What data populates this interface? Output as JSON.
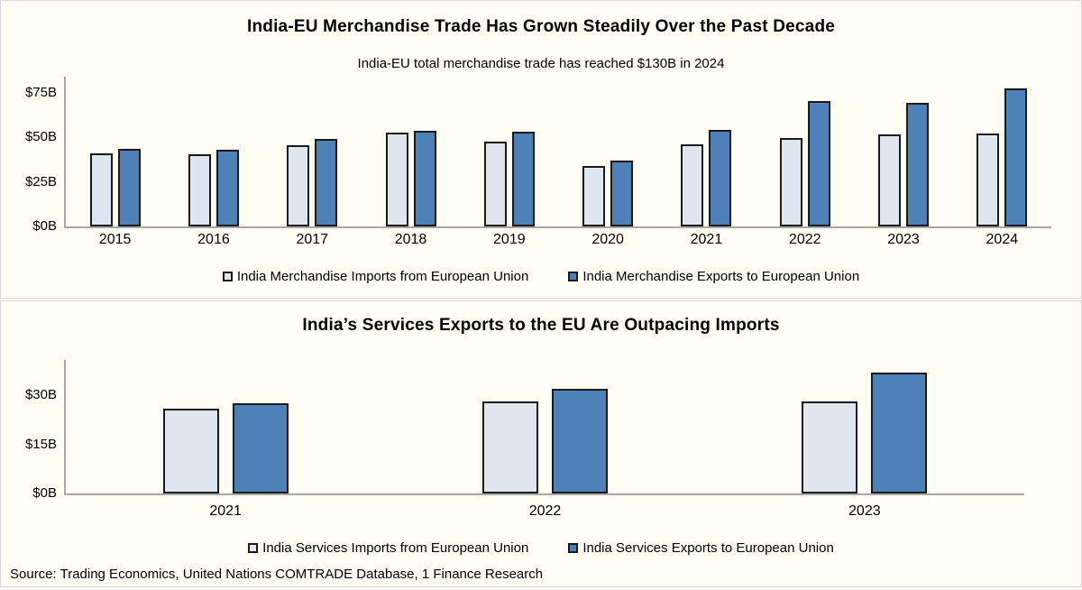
{
  "colors": {
    "background": "#fffdf4",
    "panel_border": "#d9d9d9",
    "imports_fill": "#dfe7ee",
    "exports_fill": "#4e81b8",
    "bar_border": "#1a1a1a",
    "axis": "#a8a8a8",
    "text": "#000000"
  },
  "chart_data": [
    {
      "type": "bar",
      "title": "India-EU Merchandise Trade Has Grown Steadily Over the Past Decade",
      "subtitle": "India-EU total merchandise trade has reached $130B in 2024",
      "categories": [
        "2015",
        "2016",
        "2017",
        "2018",
        "2019",
        "2020",
        "2021",
        "2022",
        "2023",
        "2024"
      ],
      "series": [
        {
          "name": "India Merchandise Imports from European Union",
          "color_key": "imports",
          "values": [
            41,
            40.5,
            45.5,
            52.5,
            47.5,
            34,
            46,
            49.5,
            51.5,
            52
          ]
        },
        {
          "name": "India Merchandise Exports to European Union",
          "color_key": "exports",
          "values": [
            43.5,
            43,
            49,
            53.5,
            53,
            37,
            54,
            70,
            69,
            77.5
          ]
        }
      ],
      "unit": "USD billions",
      "ylabel": "",
      "xlabel": "",
      "ylim": [
        0,
        85
      ],
      "yticks": [
        {
          "value": 0,
          "label": "$0B"
        },
        {
          "value": 25,
          "label": "$25B"
        },
        {
          "value": 50,
          "label": "$50B"
        },
        {
          "value": 75,
          "label": "$75B"
        }
      ],
      "grid": false,
      "legend_position": "bottom"
    },
    {
      "type": "bar",
      "title": "India’s Services Exports to the EU Are Outpacing Imports",
      "subtitle": "",
      "categories": [
        "2021",
        "2022",
        "2023"
      ],
      "series": [
        {
          "name": "India Services Imports from European Union",
          "color_key": "imports",
          "values": [
            26,
            28,
            28
          ]
        },
        {
          "name": "India Services Exports to European Union",
          "color_key": "exports",
          "values": [
            27.5,
            32,
            37
          ]
        }
      ],
      "unit": "USD billions",
      "ylabel": "",
      "xlabel": "",
      "ylim": [
        0,
        41
      ],
      "yticks": [
        {
          "value": 0,
          "label": "$0B"
        },
        {
          "value": 15,
          "label": "$15B"
        },
        {
          "value": 30,
          "label": "$30B"
        }
      ],
      "grid": false,
      "legend_position": "bottom"
    }
  ],
  "source": {
    "text": "Source: Trading Economics, United Nations COMTRADE Database, 1 Finance Research"
  }
}
